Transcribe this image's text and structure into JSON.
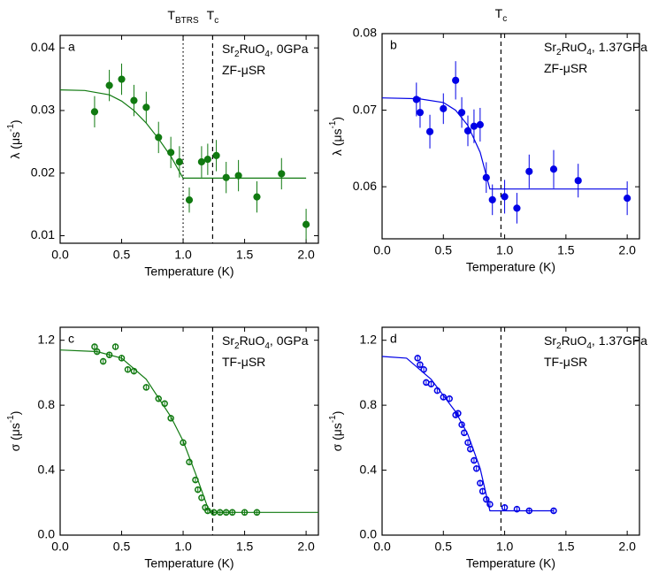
{
  "chart_data": [
    {
      "type": "scatter",
      "panel": "a",
      "marker": "filled",
      "xlabel": "Temperature (K)",
      "ylabel": [
        "λ (μs",
        "-1",
        ")"
      ],
      "annotation": [
        [
          "Sr",
          "2",
          "RuO",
          "4",
          ", 0GPa"
        ],
        [
          "ZF-μSR"
        ]
      ],
      "xlim": [
        0,
        2.1
      ],
      "ylim": [
        0.0088,
        0.042
      ],
      "xticks": [
        {
          "value": 0,
          "label": "0.0"
        },
        {
          "value": 0.5,
          "label": "0.5"
        },
        {
          "value": 1,
          "label": "1.0"
        },
        {
          "value": 1.5,
          "label": "1.5"
        },
        {
          "value": 2,
          "label": "2.0"
        }
      ],
      "yticks": [
        0.01,
        0.02,
        0.03,
        0.04
      ],
      "vlines": [
        {
          "x": 1.0,
          "style": "dotted",
          "label": [
            "T",
            "BTRS"
          ]
        },
        {
          "x": 1.24,
          "style": "dashed",
          "label": [
            "T",
            "c"
          ]
        }
      ],
      "series": [
        {
          "color": "#117a11",
          "x": [
            0.28,
            0.4,
            0.5,
            0.6,
            0.7,
            0.8,
            0.9,
            0.97,
            1.05,
            1.15,
            1.2,
            1.27,
            1.35,
            1.45,
            1.6,
            1.8,
            2.0
          ],
          "values": [
            0.0298,
            0.034,
            0.035,
            0.0316,
            0.0305,
            0.0257,
            0.0233,
            0.0218,
            0.0157,
            0.0218,
            0.0222,
            0.0228,
            0.0193,
            0.0196,
            0.0162,
            0.0199,
            0.0118
          ],
          "errors": [
            0.0025,
            0.0025,
            0.0025,
            0.0025,
            0.0025,
            0.0025,
            0.0025,
            0.0025,
            0.002,
            0.0025,
            0.0025,
            0.0025,
            0.0025,
            0.0025,
            0.0025,
            0.0025,
            0.0025
          ]
        }
      ],
      "fit": {
        "color": "#117a11",
        "x": [
          0,
          0.2,
          0.4,
          0.5,
          0.6,
          0.7,
          0.8,
          0.9,
          1.0,
          2.0
        ],
        "values": [
          0.0333,
          0.0332,
          0.0325,
          0.0315,
          0.03,
          0.028,
          0.0255,
          0.0227,
          0.0192,
          0.0192
        ]
      }
    },
    {
      "type": "scatter",
      "panel": "b",
      "marker": "filled",
      "xlabel": "Temperature (K)",
      "ylabel": [
        "λ (μs",
        "-1",
        ")"
      ],
      "annotation": [
        [
          "Sr",
          "2",
          "RuO",
          "4",
          ", 1.37GPa"
        ],
        [
          "ZF-μSR"
        ]
      ],
      "xlim": [
        0,
        2.1
      ],
      "ylim": [
        0.0532,
        0.08
      ],
      "xticks": [
        {
          "value": 0,
          "label": "0.0"
        },
        {
          "value": 0.5,
          "label": "0.5"
        },
        {
          "value": 1,
          "label": "1.0"
        },
        {
          "value": 1.5,
          "label": "1.5"
        },
        {
          "value": 2,
          "label": "2.0"
        }
      ],
      "yticks": [
        0.06,
        0.07,
        0.08
      ],
      "vlines": [
        {
          "x": 0.97,
          "style": "dashed",
          "label": [
            "T",
            "c"
          ]
        }
      ],
      "series": [
        {
          "color": "#0000e6",
          "x": [
            0.28,
            0.31,
            0.39,
            0.5,
            0.6,
            0.65,
            0.7,
            0.75,
            0.8,
            0.85,
            0.9,
            1.0,
            1.1,
            1.2,
            1.4,
            1.6,
            2.0
          ],
          "values": [
            0.0714,
            0.0697,
            0.0672,
            0.0702,
            0.0739,
            0.0697,
            0.0673,
            0.0679,
            0.0681,
            0.0612,
            0.0583,
            0.0587,
            0.0572,
            0.062,
            0.0623,
            0.0608,
            0.0585
          ],
          "errors": [
            0.0022,
            0.002,
            0.0022,
            0.002,
            0.0025,
            0.002,
            0.002,
            0.0022,
            0.0022,
            0.002,
            0.002,
            0.0022,
            0.002,
            0.0022,
            0.0025,
            0.0022,
            0.0022
          ]
        }
      ],
      "fit": {
        "color": "#0000e6",
        "x": [
          0,
          0.3,
          0.5,
          0.6,
          0.7,
          0.8,
          0.88,
          2.0
        ],
        "values": [
          0.0716,
          0.0715,
          0.071,
          0.07,
          0.068,
          0.0645,
          0.0597,
          0.0597
        ]
      }
    },
    {
      "type": "scatter",
      "panel": "c",
      "marker": "open",
      "xlabel": "Temperature (K)",
      "ylabel": [
        "σ (μs",
        "-1",
        ")"
      ],
      "annotation": [
        [
          "Sr",
          "2",
          "RuO",
          "4",
          ", 0GPa"
        ],
        [
          "TF-μSR"
        ]
      ],
      "xlim": [
        0,
        2.1
      ],
      "ylim": [
        0,
        1.28
      ],
      "xticks": [
        {
          "value": 0,
          "label": "0.0"
        },
        {
          "value": 0.5,
          "label": "0.5"
        },
        {
          "value": 1,
          "label": "1.0"
        },
        {
          "value": 1.5,
          "label": "1.5"
        },
        {
          "value": 2,
          "label": "2.0"
        }
      ],
      "yticks": [
        {
          "value": 0,
          "label": "0.0"
        },
        0.4,
        0.8,
        1.2
      ],
      "vlines": [
        {
          "x": 1.24,
          "style": "dashed"
        }
      ],
      "series": [
        {
          "color": "#117a11",
          "x": [
            0.28,
            0.3,
            0.35,
            0.4,
            0.45,
            0.5,
            0.55,
            0.6,
            0.7,
            0.8,
            0.85,
            0.9,
            1.0,
            1.05,
            1.1,
            1.12,
            1.15,
            1.18,
            1.2,
            1.25,
            1.3,
            1.35,
            1.4,
            1.5,
            1.6
          ],
          "values": [
            1.16,
            1.13,
            1.07,
            1.11,
            1.16,
            1.09,
            1.02,
            1.01,
            0.91,
            0.84,
            0.81,
            0.72,
            0.57,
            0.45,
            0.34,
            0.28,
            0.23,
            0.17,
            0.15,
            0.14,
            0.14,
            0.14,
            0.14,
            0.14,
            0.14
          ],
          "errors": [
            0.02,
            0.02,
            0.02,
            0.02,
            0.02,
            0.02,
            0.02,
            0.02,
            0.02,
            0.02,
            0.02,
            0.02,
            0.02,
            0.02,
            0.02,
            0.02,
            0.02,
            0.02,
            0.02,
            0.02,
            0.02,
            0.02,
            0.02,
            0.02,
            0.02
          ]
        }
      ],
      "fit": {
        "color": "#117a11",
        "x": [
          0,
          0.3,
          0.5,
          0.7,
          0.9,
          1.0,
          1.1,
          1.2,
          1.22,
          2.1
        ],
        "values": [
          1.14,
          1.13,
          1.09,
          0.96,
          0.73,
          0.58,
          0.38,
          0.17,
          0.14,
          0.14
        ]
      }
    },
    {
      "type": "scatter",
      "panel": "d",
      "marker": "open",
      "xlabel": "Temperature (K)",
      "ylabel": [
        "σ (μs",
        "-1",
        ")"
      ],
      "annotation": [
        [
          "Sr",
          "2",
          "RuO",
          "4",
          ", 1.37GPa"
        ],
        [
          "TF-μSR"
        ]
      ],
      "xlim": [
        0,
        2.1
      ],
      "ylim": [
        0,
        1.28
      ],
      "xticks": [
        {
          "value": 0,
          "label": "0.0"
        },
        {
          "value": 0.5,
          "label": "0.5"
        },
        {
          "value": 1,
          "label": "1.0"
        },
        {
          "value": 1.5,
          "label": "1.5"
        },
        {
          "value": 2,
          "label": "2.0"
        }
      ],
      "yticks": [
        {
          "value": 0,
          "label": "0.0"
        },
        0.4,
        0.8,
        1.2
      ],
      "vlines": [
        {
          "x": 0.97,
          "style": "dashed"
        }
      ],
      "series": [
        {
          "color": "#0000e6",
          "x": [
            0.29,
            0.31,
            0.34,
            0.36,
            0.4,
            0.45,
            0.5,
            0.55,
            0.6,
            0.62,
            0.65,
            0.67,
            0.7,
            0.72,
            0.75,
            0.77,
            0.8,
            0.82,
            0.85,
            0.88,
            1.0,
            1.1,
            1.2,
            1.4
          ],
          "values": [
            1.09,
            1.05,
            1.02,
            0.94,
            0.93,
            0.89,
            0.85,
            0.84,
            0.74,
            0.75,
            0.68,
            0.63,
            0.57,
            0.53,
            0.46,
            0.41,
            0.32,
            0.27,
            0.22,
            0.19,
            0.17,
            0.16,
            0.15,
            0.15
          ],
          "errors": [
            0.02,
            0.02,
            0.02,
            0.02,
            0.02,
            0.02,
            0.02,
            0.02,
            0.02,
            0.02,
            0.02,
            0.02,
            0.02,
            0.02,
            0.02,
            0.02,
            0.02,
            0.02,
            0.02,
            0.02,
            0.02,
            0.02,
            0.02,
            0.02
          ]
        }
      ],
      "fit": {
        "color": "#0000e6",
        "x": [
          0,
          0.2,
          0.4,
          0.6,
          0.7,
          0.8,
          0.88,
          0.9,
          1.4
        ],
        "values": [
          1.1,
          1.09,
          0.96,
          0.76,
          0.62,
          0.41,
          0.15,
          0.15,
          0.15
        ]
      }
    }
  ]
}
